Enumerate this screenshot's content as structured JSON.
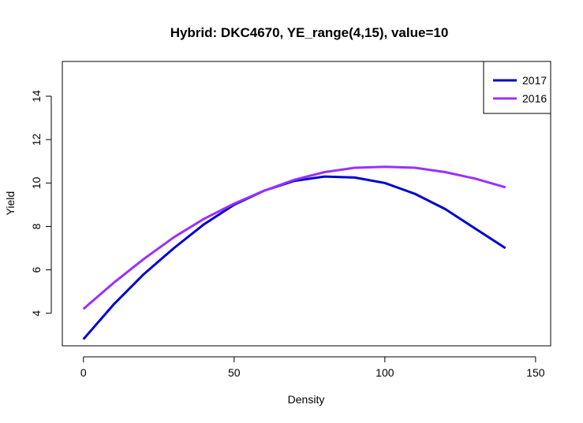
{
  "chart_data": {
    "type": "line",
    "title": "Hybrid: DKC4670, YE_range(4,15), value=10",
    "xlabel": "Density",
    "ylabel": "Yield",
    "xlim": [
      -7,
      155
    ],
    "ylim": [
      2.5,
      15.6
    ],
    "xticks": [
      0,
      50,
      100,
      150
    ],
    "yticks": [
      4,
      6,
      8,
      10,
      12,
      14
    ],
    "grid": false,
    "legend_position": "top-right",
    "series": [
      {
        "name": "2017",
        "color": "#0000d0",
        "x": [
          0,
          10,
          20,
          30,
          40,
          50,
          60,
          70,
          80,
          90,
          100,
          110,
          120,
          130,
          140
        ],
        "y": [
          2.8,
          4.4,
          5.8,
          7.0,
          8.1,
          9.0,
          9.65,
          10.1,
          10.3,
          10.25,
          10.0,
          9.5,
          8.8,
          7.9,
          7.0
        ]
      },
      {
        "name": "2016",
        "color": "#9b30ff",
        "x": [
          0,
          10,
          20,
          30,
          40,
          50,
          60,
          70,
          80,
          90,
          100,
          110,
          120,
          130,
          140
        ],
        "y": [
          4.2,
          5.4,
          6.5,
          7.5,
          8.35,
          9.05,
          9.65,
          10.15,
          10.5,
          10.7,
          10.75,
          10.7,
          10.5,
          10.2,
          9.8
        ]
      }
    ]
  }
}
